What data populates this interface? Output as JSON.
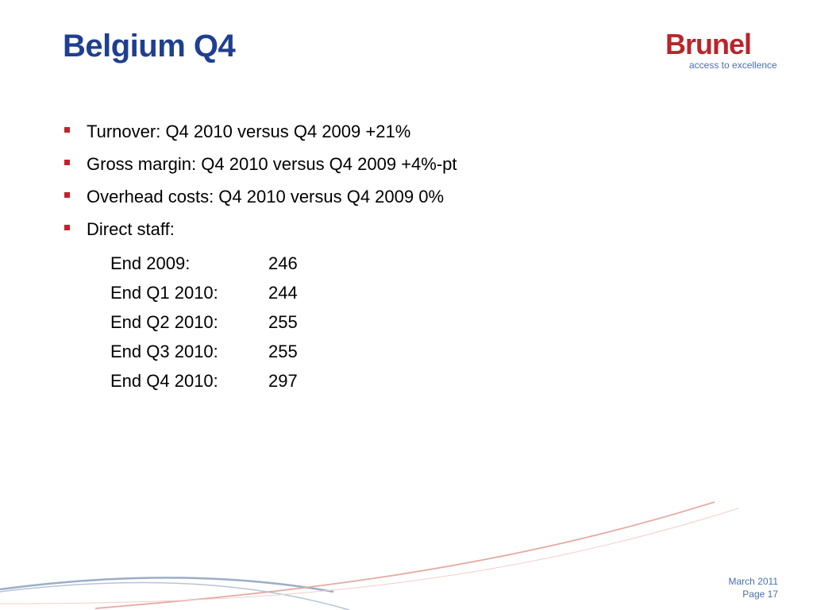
{
  "slide": {
    "title": "Belgium Q4"
  },
  "logo": {
    "wordmark": "Brunel",
    "tagline": "access to excellence",
    "color": "#b8252b"
  },
  "bullets": [
    "Turnover: Q4 2010 versus Q4 2009 +21%",
    "Gross margin: Q4 2010 versus Q4 2009 +4%-pt",
    "Overhead costs: Q4 2010 versus Q4 2009 0%",
    "Direct staff:"
  ],
  "direct_staff": [
    {
      "label": "End 2009:",
      "value": "246"
    },
    {
      "label": "End Q1 2010:",
      "value": "244"
    },
    {
      "label": "End Q2 2010:",
      "value": "255"
    },
    {
      "label": "End Q3 2010:",
      "value": "255"
    },
    {
      "label": "End Q4 2010:",
      "value": "297"
    }
  ],
  "footer": {
    "date": "March 2011",
    "page": "Page 17"
  },
  "colors": {
    "title": "#1f3f8f",
    "bullet_marker": "#c8202a",
    "accent_blue": "#4a6fb0"
  }
}
